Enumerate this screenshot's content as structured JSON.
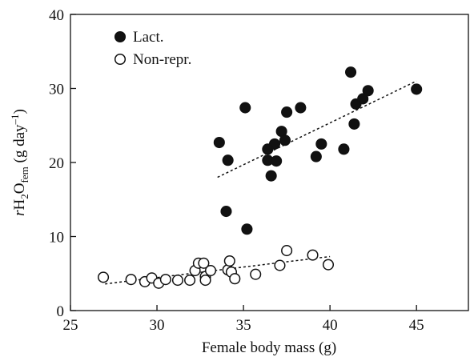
{
  "chart_data": {
    "type": "scatter",
    "x_label": "Female body mass (g)",
    "y_label": {
      "italic": "r",
      "h": "H",
      "sub1": "2",
      "o": "O",
      "sub2": "fem",
      "unit": " (g day",
      "sup": "–1",
      "close": ")"
    },
    "xlim": [
      25,
      48
    ],
    "ylim": [
      0,
      40
    ],
    "xticks": [
      25,
      30,
      35,
      40,
      45
    ],
    "yticks": [
      0,
      10,
      20,
      30,
      40
    ],
    "legend": "upper left",
    "series": [
      {
        "name": "Lact.",
        "color": "#111111",
        "filled": true,
        "x": [
          33.6,
          34.1,
          34.0,
          35.1,
          35.2,
          37.5,
          37.2,
          37.4,
          36.8,
          36.4,
          36.4,
          36.9,
          36.6,
          38.3,
          39.5,
          39.2,
          40.8,
          41.2,
          41.4,
          41.5,
          41.9,
          42.2,
          45.0
        ],
        "values": [
          22.7,
          20.3,
          13.4,
          27.4,
          11.0,
          26.8,
          24.2,
          23.0,
          22.5,
          21.8,
          20.3,
          20.2,
          18.2,
          27.4,
          22.5,
          20.8,
          21.8,
          32.2,
          25.2,
          27.9,
          28.6,
          29.7,
          29.9
        ],
        "trend": {
          "x": [
            33.5,
            45.0
          ],
          "values": [
            18.0,
            31.0
          ]
        }
      },
      {
        "name": "Non-repr.",
        "color": "#111111",
        "filled": false,
        "x": [
          26.9,
          28.5,
          29.3,
          29.7,
          30.1,
          30.5,
          31.2,
          31.9,
          32.2,
          32.4,
          32.7,
          32.8,
          32.8,
          33.1,
          34.1,
          34.2,
          34.3,
          34.5,
          35.7,
          37.1,
          37.5,
          39.0,
          39.9
        ],
        "values": [
          4.5,
          4.2,
          3.9,
          4.4,
          3.7,
          4.2,
          4.1,
          4.1,
          5.4,
          6.4,
          6.4,
          4.6,
          4.1,
          5.4,
          5.5,
          6.7,
          5.2,
          4.3,
          4.9,
          6.1,
          8.1,
          7.5,
          6.2
        ],
        "trend": {
          "x": [
            27.0,
            40.0
          ],
          "values": [
            3.6,
            7.3
          ]
        }
      }
    ]
  }
}
